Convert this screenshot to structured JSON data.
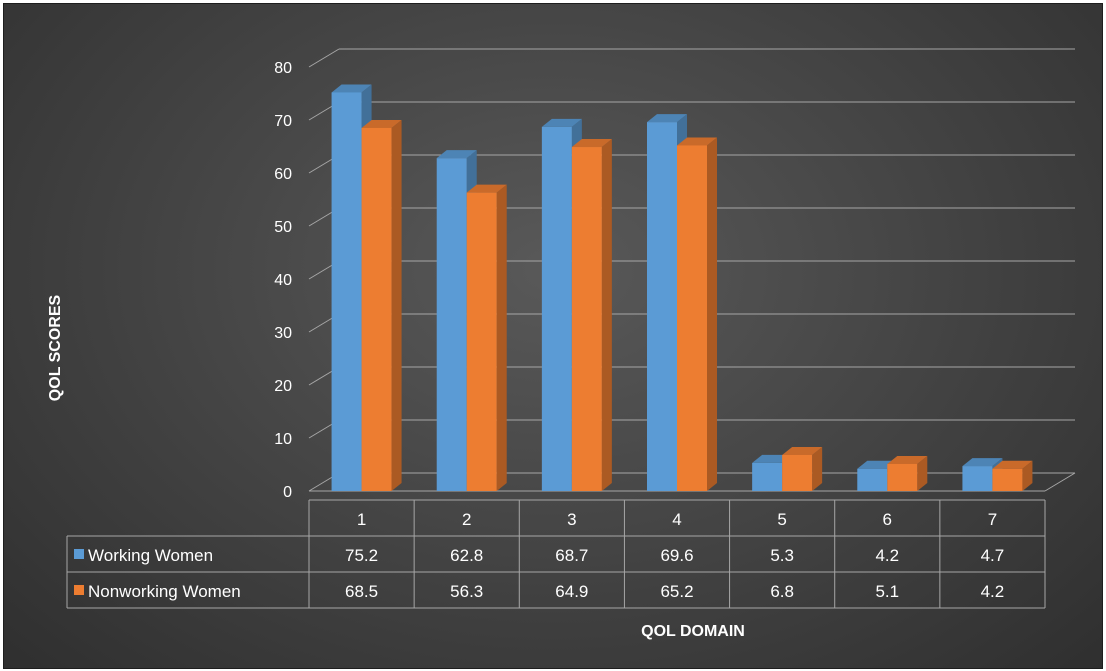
{
  "chart_data": {
    "type": "bar",
    "title": "",
    "xlabel": "QOL DOMAIN",
    "ylabel": "QOL SCORES",
    "categories": [
      "1",
      "2",
      "3",
      "4",
      "5",
      "6",
      "7"
    ],
    "series": [
      {
        "name": "Working Women",
        "values": [
          75.2,
          62.8,
          68.7,
          69.6,
          5.3,
          4.2,
          4.7
        ],
        "color": "#5b9bd5"
      },
      {
        "name": "Nonworking Women",
        "values": [
          68.5,
          56.3,
          64.9,
          65.2,
          6.8,
          5.1,
          4.2
        ],
        "color": "#ed7d31"
      }
    ],
    "ylim": [
      0,
      80
    ],
    "yticks": [
      "0",
      "10",
      "20",
      "30",
      "40",
      "50",
      "60",
      "70",
      "80"
    ],
    "grid": true,
    "three_d": true,
    "data_table": true
  },
  "colors": {
    "background": "#464646",
    "grid": "#a6a6a6",
    "text": "#ffffff"
  }
}
